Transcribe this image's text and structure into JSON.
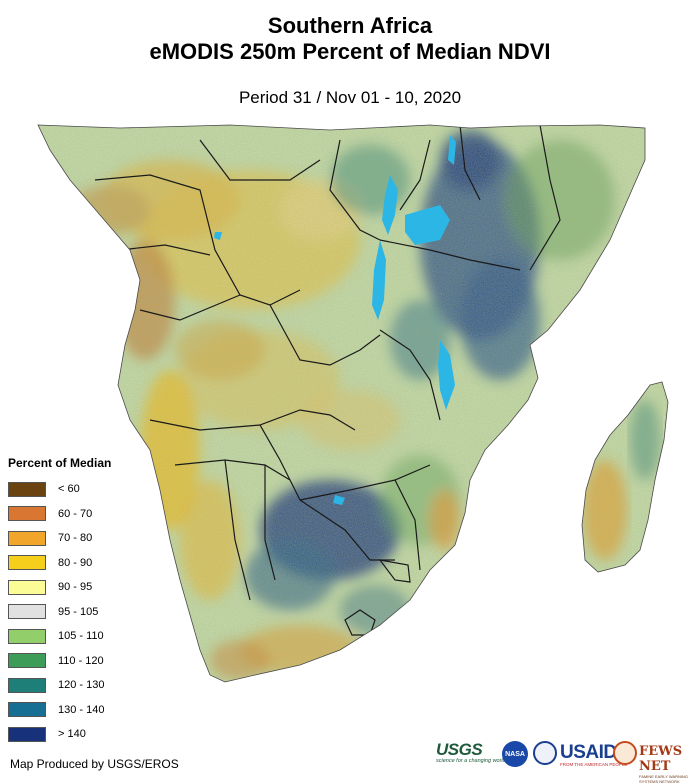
{
  "title": {
    "line1": "Southern Africa",
    "line2": "eMODIS 250m Percent of Median NDVI",
    "period": "Period 31 / Nov 01 - 10, 2020"
  },
  "legend": {
    "title": "Percent of Median",
    "items": [
      {
        "label": "< 60",
        "color": "#6b4311"
      },
      {
        "label": "60 - 70",
        "color": "#d97632"
      },
      {
        "label": "70 - 80",
        "color": "#f2a52b"
      },
      {
        "label": "80 - 90",
        "color": "#f6cf1c"
      },
      {
        "label": "90 - 95",
        "color": "#fbfc96"
      },
      {
        "label": "95 - 105",
        "color": "#e1e1e1"
      },
      {
        "label": "105 - 110",
        "color": "#92cf6b"
      },
      {
        "label": "110 - 120",
        "color": "#3e9c59"
      },
      {
        "label": "120 - 130",
        "color": "#1e7f78"
      },
      {
        "label": "130 - 140",
        "color": "#186f94"
      },
      {
        "label": "> 140",
        "color": "#17317a"
      }
    ]
  },
  "credit": "Map Produced by USGS/EROS",
  "logos": {
    "usgs": "USGS",
    "usgs_tagline": "science for a changing world",
    "nasa": "NASA",
    "usaid": "USAID",
    "usaid_tagline": "FROM THE AMERICAN PEOPLE",
    "fews": "FEWS NET",
    "fews_tagline": "FAMINE EARLY WARNING SYSTEMS NETWORK"
  },
  "colors": {
    "land_base": "#c9ddb0",
    "water": "#2bb6e6",
    "border": "#1a1a1a"
  }
}
